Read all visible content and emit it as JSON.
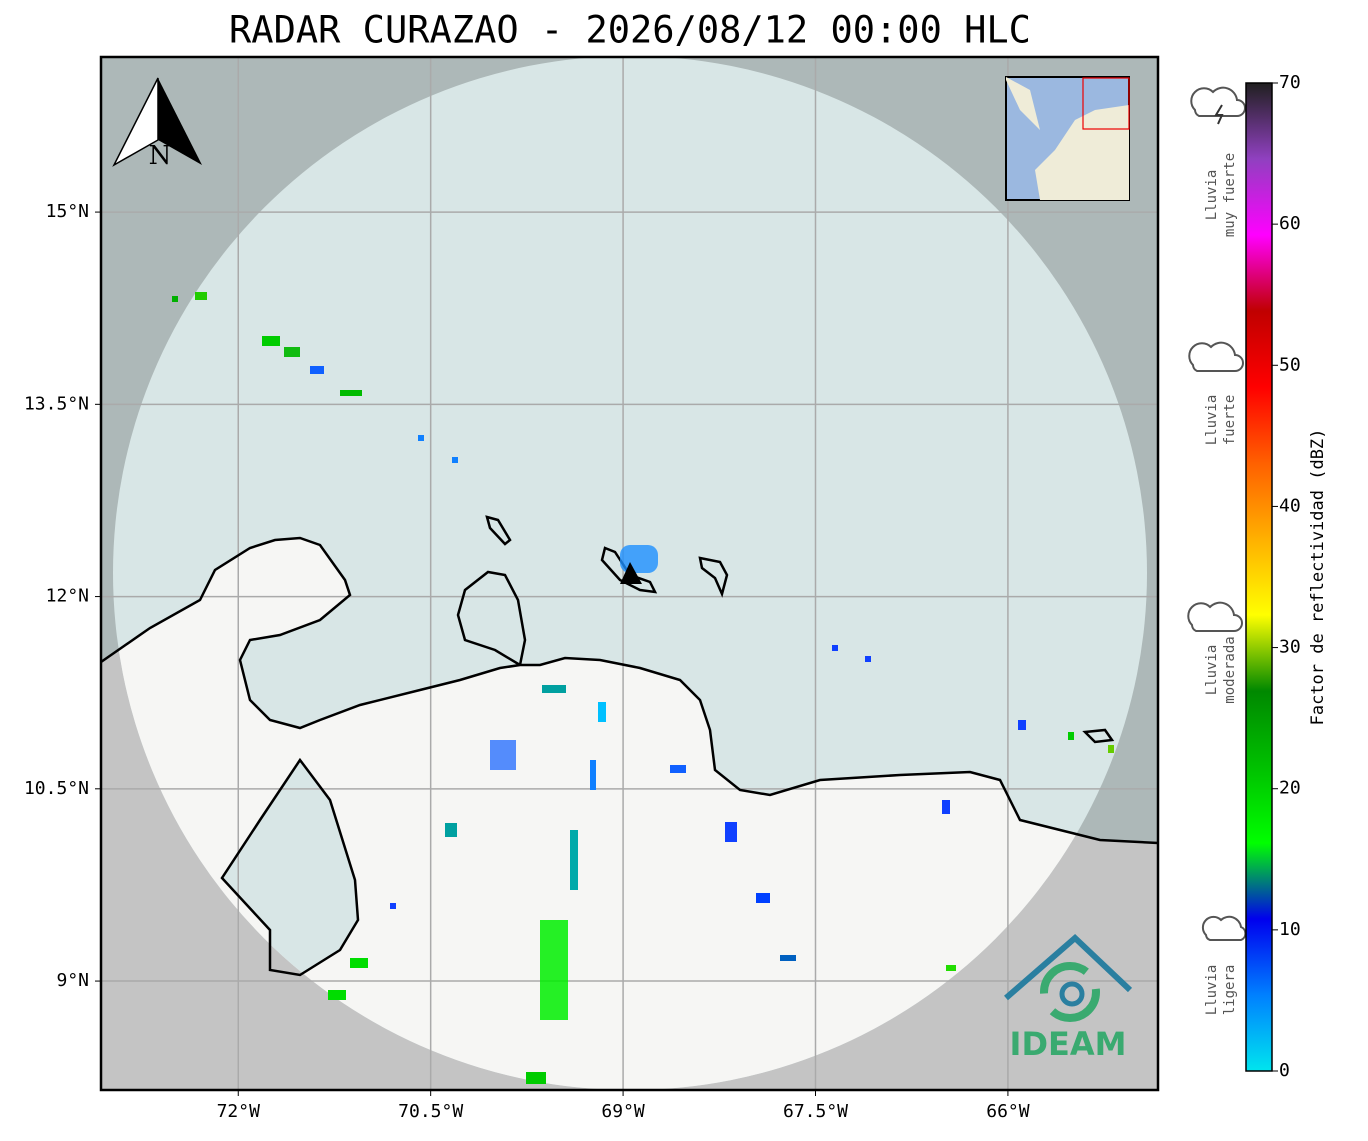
{
  "map": {
    "title": "RADAR CURAZAO - 2026/08/12 00:00 HLC",
    "north_label": "N",
    "xlim": [
      -73.07,
      -64.83
    ],
    "ylim": [
      8.15,
      16.21
    ],
    "xticks": [
      {
        "value": -72,
        "label": "72°W"
      },
      {
        "value": -70.5,
        "label": "70.5°W"
      },
      {
        "value": -69,
        "label": "69°W"
      },
      {
        "value": -67.5,
        "label": "67.5°W"
      },
      {
        "value": -66,
        "label": "66°W"
      }
    ],
    "yticks": [
      {
        "value": 15,
        "label": "15°N"
      },
      {
        "value": 13.5,
        "label": "13.5°N"
      },
      {
        "value": 12,
        "label": "12°N"
      },
      {
        "value": 10.5,
        "label": "10.5°N"
      },
      {
        "value": 9,
        "label": "9°N"
      }
    ],
    "grid": true,
    "logo": "IDEAM"
  },
  "colorbar": {
    "label": "Factor de reflectividad (dBZ)",
    "lim": [
      0,
      70
    ],
    "ticks": [
      0,
      10,
      20,
      30,
      40,
      50,
      60,
      70
    ],
    "colors": [
      "#00e5ee",
      "#0080ff",
      "#0000ee",
      "#00ff00",
      "#00c000",
      "#008800",
      "#ffff00",
      "#ffb000",
      "#ff6000",
      "#ff0000",
      "#c00000",
      "#ff00ff",
      "#9040c0",
      "#202020"
    ]
  },
  "legend": [
    {
      "lines": [
        "Lluvia",
        "muy fuerte"
      ]
    },
    {
      "lines": [
        "Lluvia",
        "fuerte"
      ]
    },
    {
      "lines": [
        "Lluvia",
        "moderada"
      ]
    },
    {
      "lines": [
        "Lluvia",
        "ligera"
      ]
    }
  ]
}
